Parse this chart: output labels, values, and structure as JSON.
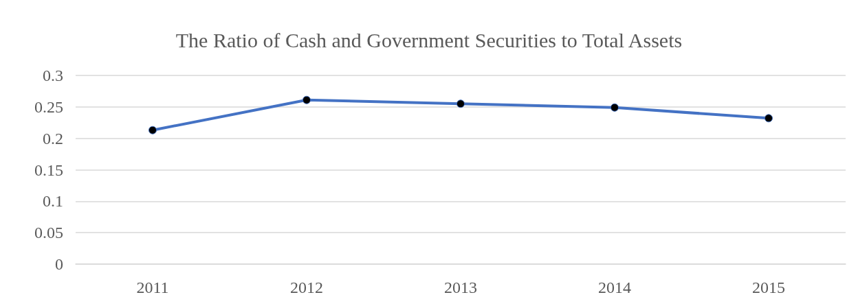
{
  "chart_data": {
    "type": "line",
    "title": "The Ratio of Cash and Government Securities to Total Assets",
    "categories": [
      "2011",
      "2012",
      "2013",
      "2014",
      "2015"
    ],
    "series": [
      {
        "color": "#4472c4",
        "values": [
          0.213,
          0.261,
          0.255,
          0.249,
          0.232
        ]
      }
    ],
    "ylim": [
      0,
      0.3
    ],
    "yticks": [
      0,
      0.05,
      0.1,
      0.15,
      0.2,
      0.25,
      0.3
    ],
    "grid": "y",
    "marker": "circle",
    "line_style": "solid"
  }
}
